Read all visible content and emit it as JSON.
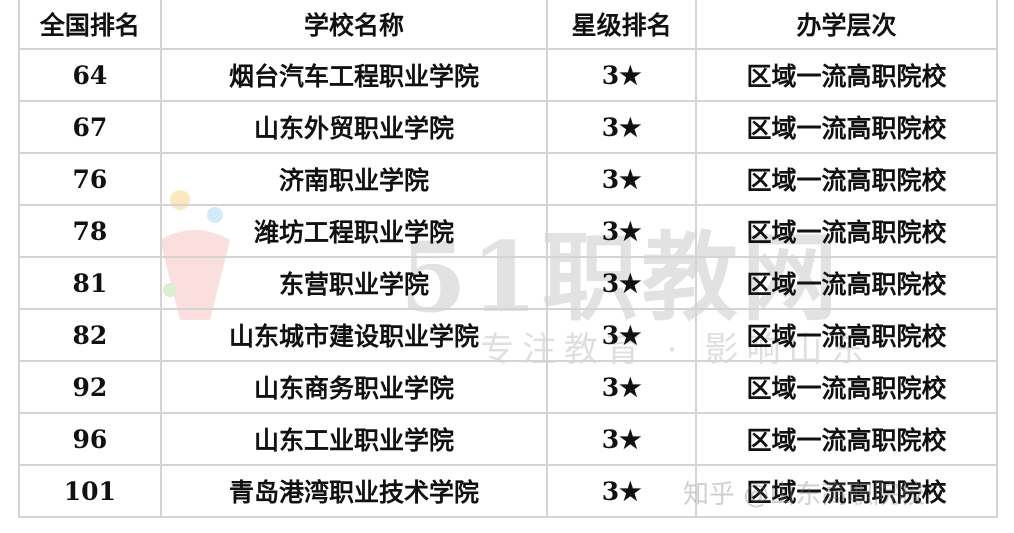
{
  "table": {
    "headers": [
      "全国排名",
      "学校名称",
      "星级排名",
      "办学层次"
    ],
    "rows": [
      [
        "64",
        "烟台汽车工程职业学院",
        "3★",
        "区域一流高职院校"
      ],
      [
        "67",
        "山东外贸职业学院",
        "3★",
        "区域一流高职院校"
      ],
      [
        "76",
        "济南职业学院",
        "3★",
        "区域一流高职院校"
      ],
      [
        "78",
        "潍坊工程职业学院",
        "3★",
        "区域一流高职院校"
      ],
      [
        "81",
        "东营职业学院",
        "3★",
        "区域一流高职院校"
      ],
      [
        "82",
        "山东城市建设职业学院",
        "3★",
        "区域一流高职院校"
      ],
      [
        "92",
        "山东商务职业学院",
        "3★",
        "区域一流高职院校"
      ],
      [
        "96",
        "山东工业职业学院",
        "3★",
        "区域一流高职院校"
      ],
      [
        "101",
        "青岛港湾职业技术学院",
        "3★",
        "区域一流高职院校"
      ]
    ]
  },
  "watermark": {
    "brand": "51职教网",
    "slogan": "专注教育 · 影响山东",
    "source": "知乎 @山东高职院校"
  },
  "colors": {
    "grid": "#d4d4d4",
    "text": "#111111"
  }
}
